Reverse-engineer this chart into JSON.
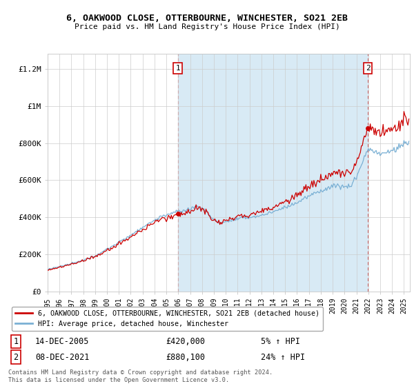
{
  "title": "6, OAKWOOD CLOSE, OTTERBOURNE, WINCHESTER, SO21 2EB",
  "subtitle": "Price paid vs. HM Land Registry's House Price Index (HPI)",
  "ylabel_ticks": [
    "£0",
    "£200K",
    "£400K",
    "£600K",
    "£800K",
    "£1M",
    "£1.2M"
  ],
  "ytick_values": [
    0,
    200000,
    400000,
    600000,
    800000,
    1000000,
    1200000
  ],
  "ylim": [
    0,
    1280000
  ],
  "xlim_start": 1995.0,
  "xlim_end": 2025.5,
  "house_color": "#cc0000",
  "hpi_color": "#7ab0d4",
  "shade_color": "#d8eaf5",
  "legend_house": "6, OAKWOOD CLOSE, OTTERBOURNE, WINCHESTER, SO21 2EB (detached house)",
  "legend_hpi": "HPI: Average price, detached house, Winchester",
  "sale1_price": 420000,
  "sale1_label": "1",
  "sale1_x": 2005.958,
  "sale2_price": 880100,
  "sale2_label": "2",
  "sale2_x": 2021.958,
  "footnote": "Contains HM Land Registry data © Crown copyright and database right 2024.\nThis data is licensed under the Open Government Licence v3.0.",
  "background_color": "#ffffff",
  "grid_color": "#cccccc"
}
